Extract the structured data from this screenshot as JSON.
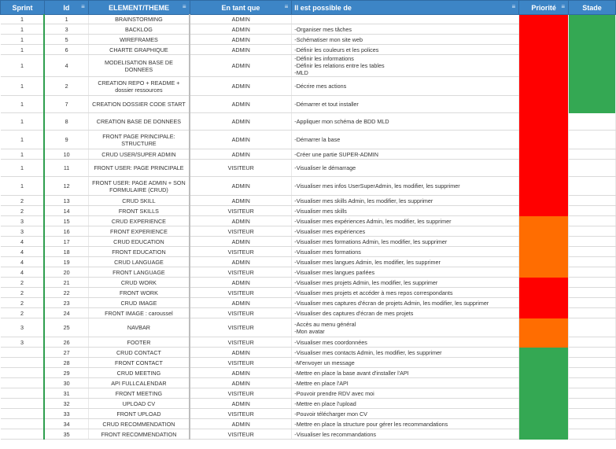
{
  "columns": {
    "sprint": "Sprint",
    "id": "Id",
    "element": "ELEMENT/THEME",
    "en_tant_que": "En tant que",
    "possible": "Il est possible de",
    "priorite": "Priorité",
    "stade": "Stade"
  },
  "filter_glyph": "≡",
  "colors": {
    "header_bg": "#3d85c6",
    "red": "#ff0000",
    "orange": "#ff6d01",
    "green": "#34a853",
    "empty": "#ffffff"
  },
  "rows": [
    {
      "sprint": "1",
      "id": "1",
      "element": "BRAINSTORMING",
      "role": "ADMIN",
      "desc": [
        ""
      ],
      "prio": "red",
      "stade": "green"
    },
    {
      "sprint": "1",
      "id": "3",
      "element": "BACKLOG",
      "role": "ADMIN",
      "desc": [
        "-Organiser mes tâches"
      ],
      "prio": "red",
      "stade": "green"
    },
    {
      "sprint": "1",
      "id": "5",
      "element": "WIREFRAMES",
      "role": "ADMIN",
      "desc": [
        "-Schématiser mon site web"
      ],
      "prio": "red",
      "stade": "green"
    },
    {
      "sprint": "1",
      "id": "6",
      "element": "CHARTE GRAPHIQUE",
      "role": "ADMIN",
      "desc": [
        "-Définir les couleurs et les polices"
      ],
      "prio": "red",
      "stade": "green"
    },
    {
      "sprint": "1",
      "id": "4",
      "element": "MODELISATION BASE DE DONNEES",
      "role": "ADMIN",
      "desc": [
        "-Définir les informations",
        "-Définir les relations entre les tables",
        "-MLD"
      ],
      "prio": "red",
      "stade": "green"
    },
    {
      "sprint": "1",
      "id": "2",
      "element": "CREATION REPO + README + dossier ressources",
      "role": "ADMIN",
      "desc": [
        "-Décrire mes actions"
      ],
      "prio": "red",
      "stade": "green"
    },
    {
      "sprint": "1",
      "id": "7",
      "element": "CREATION DOSSIER CODE START",
      "role": "ADMIN",
      "desc": [
        "-Démarrer et tout installer"
      ],
      "prio": "red",
      "stade": "green"
    },
    {
      "sprint": "1",
      "id": "8",
      "element": "CREATION BASE DE DONNEES",
      "role": "ADMIN",
      "desc": [
        "-Appliquer mon schéma de BDD MLD"
      ],
      "prio": "red",
      "stade": "empty"
    },
    {
      "sprint": "1",
      "id": "9",
      "element": "FRONT PAGE PRINCIPALE: STRUCTURE",
      "role": "ADMIN",
      "desc": [
        "-Démarrer la base"
      ],
      "prio": "red",
      "stade": "empty"
    },
    {
      "sprint": "1",
      "id": "10",
      "element": "CRUD USER/SUPER ADMIN",
      "role": "ADMIN",
      "desc": [
        "-Créer une partie SUPER-ADMIN"
      ],
      "prio": "red",
      "stade": "empty"
    },
    {
      "sprint": "1",
      "id": "11",
      "element": "FRONT USER: PAGE PRINCIPALE",
      "role": "VISITEUR",
      "desc": [
        "-Visualiser le démarrage"
      ],
      "prio": "red",
      "stade": "empty"
    },
    {
      "sprint": "1",
      "id": "12",
      "element": "FRONT USER: PAGE ADMIN + SON FORMULAIRE (CRUD)",
      "role": "ADMIN",
      "desc": [
        "-Visualiser mes infos UserSuperAdmin, les modifier, les supprimer"
      ],
      "prio": "red",
      "stade": "empty"
    },
    {
      "sprint": "2",
      "id": "13",
      "element": "CRUD SKILL",
      "role": "ADMIN",
      "desc": [
        "-Visualiser mes skills Admin, les modifier, les supprimer"
      ],
      "prio": "red",
      "stade": "empty"
    },
    {
      "sprint": "2",
      "id": "14",
      "element": "FRONT SKILLS",
      "role": "VISITEUR",
      "desc": [
        "-Visualiser mes skills"
      ],
      "prio": "red",
      "stade": "empty"
    },
    {
      "sprint": "3",
      "id": "15",
      "element": "CRUD EXPERIENCE",
      "role": "ADMIN",
      "desc": [
        "-Visualiser mes expériences Admin, les modifier, les supprimer"
      ],
      "prio": "orange",
      "stade": "empty"
    },
    {
      "sprint": "3",
      "id": "16",
      "element": "FRONT EXPERIENCE",
      "role": "VISITEUR",
      "desc": [
        "-Visualiser mes expériences"
      ],
      "prio": "orange",
      "stade": "empty"
    },
    {
      "sprint": "4",
      "id": "17",
      "element": "CRUD EDUCATION",
      "role": "ADMIN",
      "desc": [
        "-Visualiser mes formations Admin, les modifier, les supprimer"
      ],
      "prio": "orange",
      "stade": "empty"
    },
    {
      "sprint": "4",
      "id": "18",
      "element": "FRONT EDUCATION",
      "role": "VISITEUR",
      "desc": [
        "-Visualiser mes formations"
      ],
      "prio": "orange",
      "stade": "empty"
    },
    {
      "sprint": "4",
      "id": "19",
      "element": "CRUD LANGUAGE",
      "role": "ADMIN",
      "desc": [
        "-Visualiser mes langues Admin, les modifier, les supprimer"
      ],
      "prio": "orange",
      "stade": "empty"
    },
    {
      "sprint": "4",
      "id": "20",
      "element": "FRONT LANGUAGE",
      "role": "VISITEUR",
      "desc": [
        "-Visualiser mes langues parlées"
      ],
      "prio": "orange",
      "stade": "empty"
    },
    {
      "sprint": "2",
      "id": "21",
      "element": "CRUD WORK",
      "role": "ADMIN",
      "desc": [
        "-Visualiser mes projets Admin, les modifier, les supprimer"
      ],
      "prio": "red",
      "stade": "empty"
    },
    {
      "sprint": "2",
      "id": "22",
      "element": "FRONT WORK",
      "role": "VISITEUR",
      "desc": [
        "-Visualiser mes projets et accéder à mes repos correspondants"
      ],
      "prio": "red",
      "stade": "empty"
    },
    {
      "sprint": "2",
      "id": "23",
      "element": "CRUD IMAGE",
      "role": "ADMIN",
      "desc": [
        "-Visualiser mes captures d'écran de projets Admin, les modifier, les supprimer"
      ],
      "prio": "red",
      "stade": "empty"
    },
    {
      "sprint": "2",
      "id": "24",
      "element": "FRONT IMAGE : caroussel",
      "role": "VISITEUR",
      "desc": [
        "-Visualiser des captures d'écran de mes projets"
      ],
      "prio": "red",
      "stade": "empty"
    },
    {
      "sprint": "3",
      "id": "25",
      "element": "NAVBAR",
      "role": "VISITEUR",
      "desc": [
        "-Accès au menu général",
        "-Mon avatar"
      ],
      "prio": "orange",
      "stade": "empty"
    },
    {
      "sprint": "3",
      "id": "26",
      "element": "FOOTER",
      "role": "VISITEUR",
      "desc": [
        "-Visualiser mes coordonnées"
      ],
      "prio": "orange",
      "stade": "empty"
    },
    {
      "sprint": "",
      "id": "27",
      "element": "CRUD CONTACT",
      "role": "ADMIN",
      "desc": [
        "-Visualiser mes contacts Admin, les modifier, les supprimer"
      ],
      "prio": "green",
      "stade": "empty"
    },
    {
      "sprint": "",
      "id": "28",
      "element": "FRONT CONTACT",
      "role": "VISITEUR",
      "desc": [
        "-M'envoyer un message"
      ],
      "prio": "green",
      "stade": "empty"
    },
    {
      "sprint": "",
      "id": "29",
      "element": "CRUD MEETING",
      "role": "ADMIN",
      "desc": [
        "-Mettre en place la base avant d'installer l'API"
      ],
      "prio": "green",
      "stade": "empty"
    },
    {
      "sprint": "",
      "id": "30",
      "element": "API FULLCALENDAR",
      "role": "ADMIN",
      "desc": [
        "-Mettre en place l'API"
      ],
      "prio": "green",
      "stade": "empty"
    },
    {
      "sprint": "",
      "id": "31",
      "element": "FRONT MEETING",
      "role": "VISITEUR",
      "desc": [
        "-Pouvoir prendre RDV avec moi"
      ],
      "prio": "green",
      "stade": "empty"
    },
    {
      "sprint": "",
      "id": "32",
      "element": "UPLOAD CV",
      "role": "ADMIN",
      "desc": [
        "-Mettre en place l'upload"
      ],
      "prio": "green",
      "stade": "empty"
    },
    {
      "sprint": "",
      "id": "33",
      "element": "FRONT UPLOAD",
      "role": "VISITEUR",
      "desc": [
        "-Pouvoir télécharger mon CV"
      ],
      "prio": "green",
      "stade": "empty"
    },
    {
      "sprint": "",
      "id": "34",
      "element": "CRUD RECOMMENDATION",
      "role": "ADMIN",
      "desc": [
        "-Mettre en place la structure pour gérer les recommandations"
      ],
      "prio": "green",
      "stade": "empty"
    },
    {
      "sprint": "",
      "id": "35",
      "element": "FRONT RECOMMENDATION",
      "role": "VISITEUR",
      "desc": [
        "-Visualiser les recommandations"
      ],
      "prio": "green",
      "stade": "empty"
    }
  ]
}
